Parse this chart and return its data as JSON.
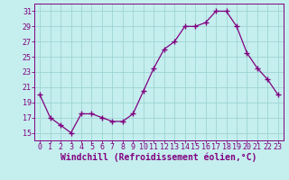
{
  "hours": [
    0,
    1,
    2,
    3,
    4,
    5,
    6,
    7,
    8,
    9,
    10,
    11,
    12,
    13,
    14,
    15,
    16,
    17,
    18,
    19,
    20,
    21,
    22,
    23
  ],
  "values": [
    20.0,
    17.0,
    16.0,
    15.0,
    17.5,
    17.5,
    17.0,
    16.5,
    16.5,
    17.5,
    20.5,
    23.5,
    26.0,
    27.0,
    29.0,
    29.0,
    29.5,
    31.0,
    31.0,
    29.0,
    25.5,
    23.5,
    22.0,
    20.0
  ],
  "line_color": "#800080",
  "marker": "+",
  "marker_size": 4,
  "bg_color": "#c5eeee",
  "grid_color": "#9ed4d4",
  "xlabel": "Windchill (Refroidissement éolien,°C)",
  "ylim": [
    14,
    32
  ],
  "xlim": [
    -0.5,
    23.5
  ],
  "yticks": [
    15,
    17,
    19,
    21,
    23,
    25,
    27,
    29,
    31
  ],
  "xticks": [
    0,
    1,
    2,
    3,
    4,
    5,
    6,
    7,
    8,
    9,
    10,
    11,
    12,
    13,
    14,
    15,
    16,
    17,
    18,
    19,
    20,
    21,
    22,
    23
  ],
  "axis_color": "#800080",
  "label_fontsize": 7,
  "tick_fontsize": 6
}
